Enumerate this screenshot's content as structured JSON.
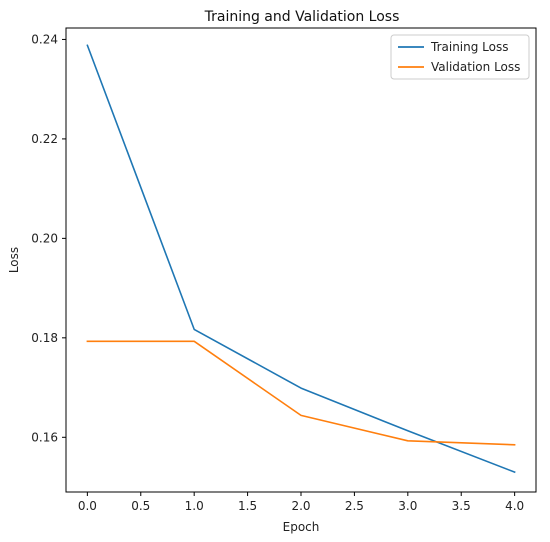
{
  "chart_data": {
    "type": "line",
    "title": "Training and Validation Loss",
    "xlabel": "Epoch",
    "ylabel": "Loss",
    "x": [
      0,
      1,
      2,
      3,
      4
    ],
    "xlim": [
      -0.2,
      4.2
    ],
    "ylim": [
      0.149,
      0.2423
    ],
    "xticks": [
      0.0,
      0.5,
      1.0,
      1.5,
      2.0,
      2.5,
      3.0,
      3.5,
      4.0
    ],
    "xtick_labels": [
      "0.0",
      "0.5",
      "1.0",
      "1.5",
      "2.0",
      "2.5",
      "3.0",
      "3.5",
      "4.0"
    ],
    "yticks": [
      0.16,
      0.18,
      0.2,
      0.22,
      0.24
    ],
    "ytick_labels": [
      "0.16",
      "0.18",
      "0.20",
      "0.22",
      "0.24"
    ],
    "grid": false,
    "legend_position": "top-right",
    "series": [
      {
        "name": "Training Loss",
        "color": "#1f77b4",
        "values": [
          0.2388,
          0.1817,
          0.1699,
          0.1613,
          0.153
        ]
      },
      {
        "name": "Validation Loss",
        "color": "#ff7f0e",
        "values": [
          0.1793,
          0.1793,
          0.1644,
          0.1593,
          0.1585
        ]
      }
    ]
  }
}
